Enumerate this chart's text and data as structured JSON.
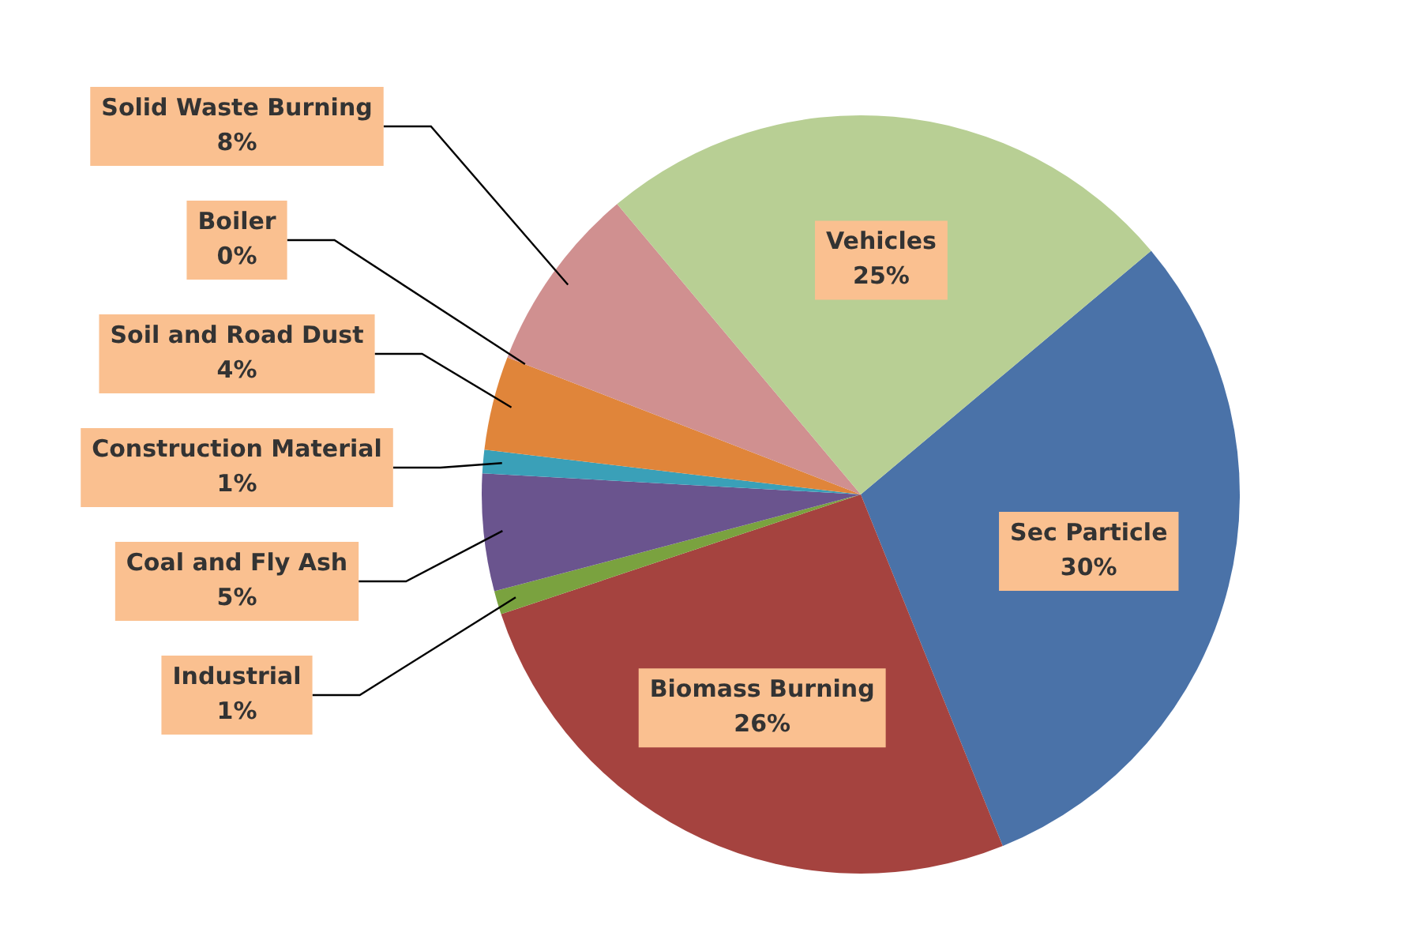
{
  "chart_data": {
    "type": "pie",
    "categories": [
      "Sec Particle",
      "Biomass Burning",
      "Industrial",
      "Coal and Fly Ash",
      "Construction Material",
      "Soil and Road Dust",
      "Boiler",
      "Solid Waste Burning",
      "Vehicles"
    ],
    "values": [
      30,
      26,
      1,
      5,
      1,
      4,
      0,
      8,
      25
    ],
    "value_labels": [
      "30%",
      "26%",
      "1%",
      "5%",
      "1%",
      "4%",
      "0%",
      "8%",
      "25%"
    ],
    "colors": [
      "#4a72a8",
      "#a5433f",
      "#7aa23f",
      "#6a548e",
      "#3aa0b8",
      "#e0853a",
      "#c0504d",
      "#d09090",
      "#b8cf94"
    ],
    "legend": false
  }
}
